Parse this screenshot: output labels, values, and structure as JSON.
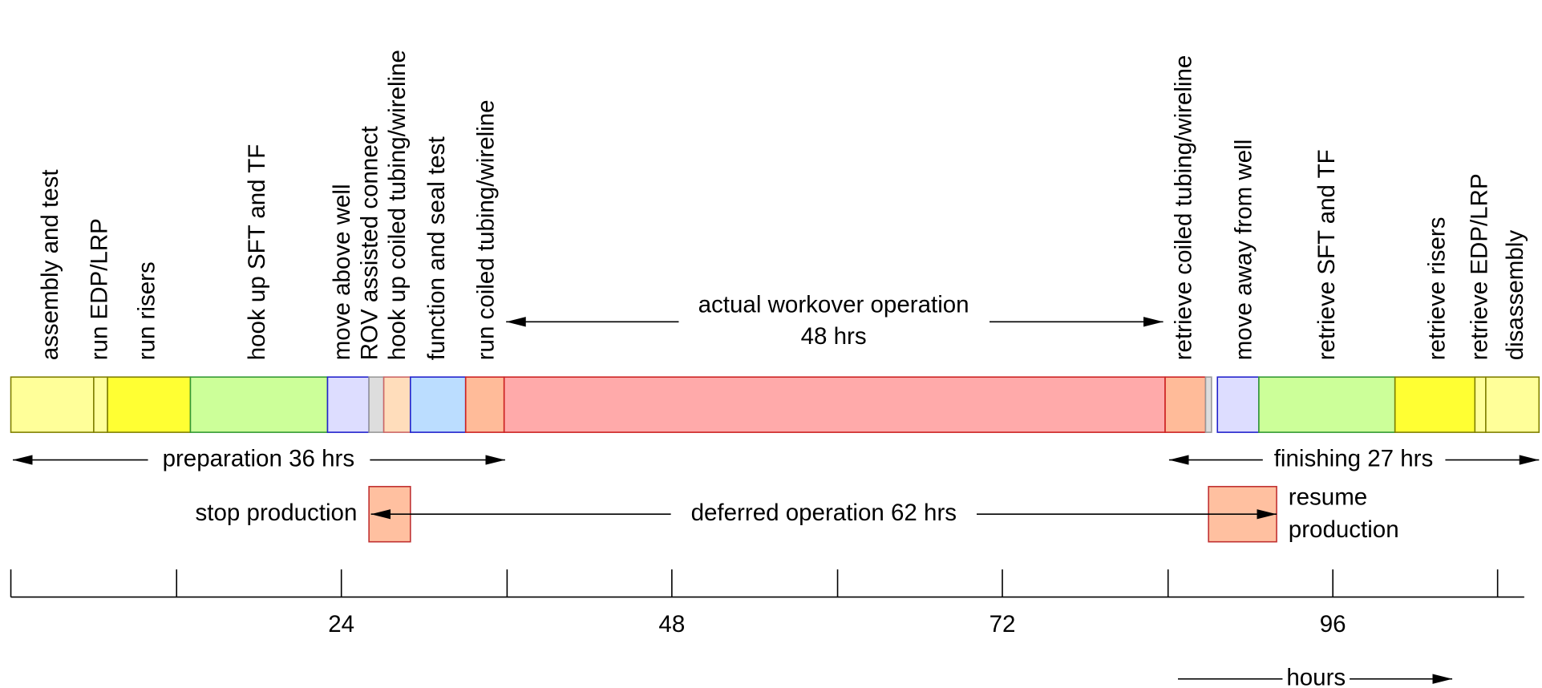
{
  "activities": [
    "assembly and test",
    "run EDP/LRP",
    "run risers",
    "hook up SFT and TF",
    "move above well",
    "ROV assisted connect",
    "hook up coiled tubing/wireline",
    "function and seal test",
    "run coiled tubing/wireline",
    "retrieve coiled tubing/wireline",
    "move away from well",
    "retrieve SFT and TF",
    "retrieve risers",
    "retrieve EDP/LRP",
    "disassembly"
  ],
  "workover": {
    "label": "actual workover operation",
    "duration": "48 hrs"
  },
  "preparation": "preparation 36 hrs",
  "finishing": "finishing 27 hrs",
  "stop": "stop production",
  "deferred": "deferred operation 62 hrs",
  "resume": [
    "resume",
    "production"
  ],
  "axis": {
    "ticks": [
      "24",
      "48",
      "72",
      "96"
    ],
    "label": "hours"
  }
}
